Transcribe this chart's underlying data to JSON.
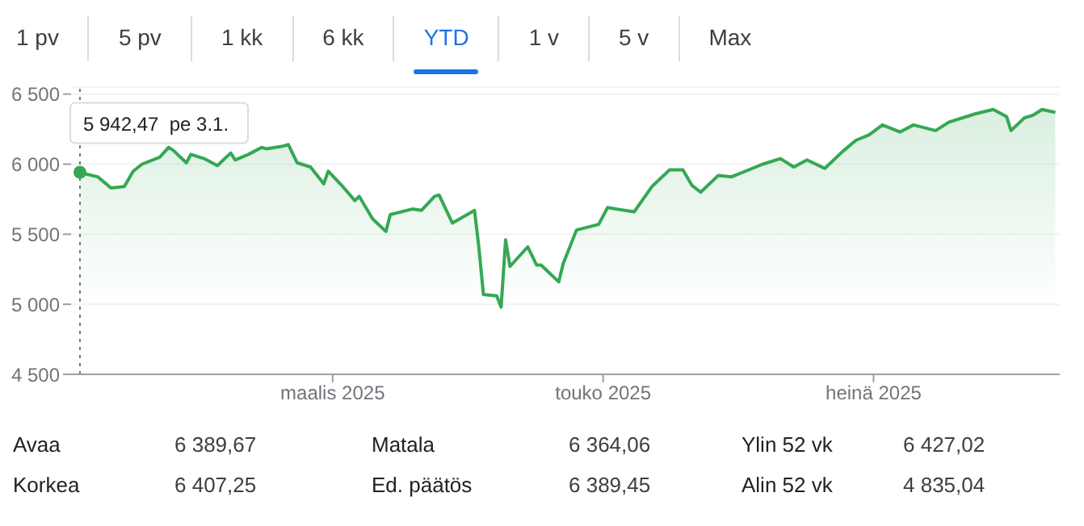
{
  "chart_data": {
    "type": "area",
    "x": [
      "2025-01-03",
      "2025-01-07",
      "2025-01-10",
      "2025-01-13",
      "2025-01-15",
      "2025-01-17",
      "2025-01-21",
      "2025-01-23",
      "2025-01-24",
      "2025-01-27",
      "2025-01-28",
      "2025-01-31",
      "2025-02-03",
      "2025-02-06",
      "2025-02-07",
      "2025-02-10",
      "2025-02-13",
      "2025-02-14",
      "2025-02-18",
      "2025-02-19",
      "2025-02-21",
      "2025-02-24",
      "2025-02-27",
      "2025-02-28",
      "2025-03-03",
      "2025-03-06",
      "2025-03-07",
      "2025-03-10",
      "2025-03-13",
      "2025-03-14",
      "2025-03-19",
      "2025-03-21",
      "2025-03-24",
      "2025-03-25",
      "2025-03-28",
      "2025-04-02",
      "2025-04-03",
      "2025-04-04",
      "2025-04-07",
      "2025-04-08",
      "2025-04-09",
      "2025-04-10",
      "2025-04-14",
      "2025-04-16",
      "2025-04-17",
      "2025-04-21",
      "2025-04-22",
      "2025-04-25",
      "2025-04-30",
      "2025-05-02",
      "2025-05-08",
      "2025-05-12",
      "2025-05-16",
      "2025-05-19",
      "2025-05-21",
      "2025-05-23",
      "2025-05-27",
      "2025-05-30",
      "2025-06-06",
      "2025-06-10",
      "2025-06-13",
      "2025-06-16",
      "2025-06-20",
      "2025-06-24",
      "2025-06-27",
      "2025-06-30",
      "2025-07-03",
      "2025-07-07",
      "2025-07-10",
      "2025-07-15",
      "2025-07-18",
      "2025-07-24",
      "2025-07-28",
      "2025-07-31",
      "2025-08-01",
      "2025-08-04",
      "2025-08-06",
      "2025-08-08",
      "2025-08-11"
    ],
    "series": [
      {
        "color": "#34a853",
        "values": [
          5940,
          5910,
          5830,
          5840,
          5950,
          6000,
          6050,
          6120,
          6100,
          6010,
          6070,
          6040,
          5990,
          6080,
          6030,
          6070,
          6120,
          6110,
          6130,
          6140,
          6010,
          5980,
          5860,
          5950,
          5850,
          5740,
          5770,
          5610,
          5520,
          5640,
          5680,
          5670,
          5770,
          5780,
          5580,
          5670,
          5400,
          5070,
          5060,
          4980,
          5460,
          5270,
          5410,
          5280,
          5280,
          5160,
          5290,
          5530,
          5570,
          5690,
          5660,
          5840,
          5960,
          5960,
          5850,
          5800,
          5920,
          5910,
          6000,
          6040,
          5980,
          6030,
          5970,
          6090,
          6170,
          6210,
          6280,
          6230,
          6280,
          6240,
          6300,
          6360,
          6390,
          6340,
          6240,
          6330,
          6350,
          6390,
          6370
        ]
      }
    ],
    "xlim": [
      "2025-01-01",
      "2025-08-12"
    ],
    "xticks": [
      {
        "value": "2025-03-01",
        "label": "maalis 2025"
      },
      {
        "value": "2025-05-01",
        "label": "touko 2025"
      },
      {
        "value": "2025-07-01",
        "label": "heinä 2025"
      }
    ],
    "ylim": [
      4500,
      6550
    ],
    "yticks": [
      {
        "value": 4500,
        "label": "4 500"
      },
      {
        "value": 5000,
        "label": "5 000"
      },
      {
        "value": 5500,
        "label": "5 500"
      },
      {
        "value": 6000,
        "label": "6 000"
      },
      {
        "value": 6500,
        "label": "6 500"
      }
    ],
    "grid": "y",
    "marker": "none",
    "line_style": "solid",
    "legend": false,
    "ref_lines": [
      {
        "axis": "x",
        "value": "2025-01-03",
        "label": null,
        "color": "#70757a",
        "line_style": "dotted"
      }
    ],
    "annotations": [
      "1 pv",
      "5 pv",
      "1 kk",
      "6 kk",
      "YTD",
      "1 v",
      "5 v",
      "Max",
      {
        "text": "5 942,47  pe 3.1.",
        "x": "2025-01-03",
        "y": 5942.47
      },
      "Avaa",
      "6 389,67",
      "Korkea",
      "6 407,25",
      "Matala",
      "6 364,06",
      "Ed. päätös",
      "6 389,45",
      "Ylin 52 vk",
      "6 427,02",
      "Alin 52 vk",
      "4 835,04"
    ]
  }
}
